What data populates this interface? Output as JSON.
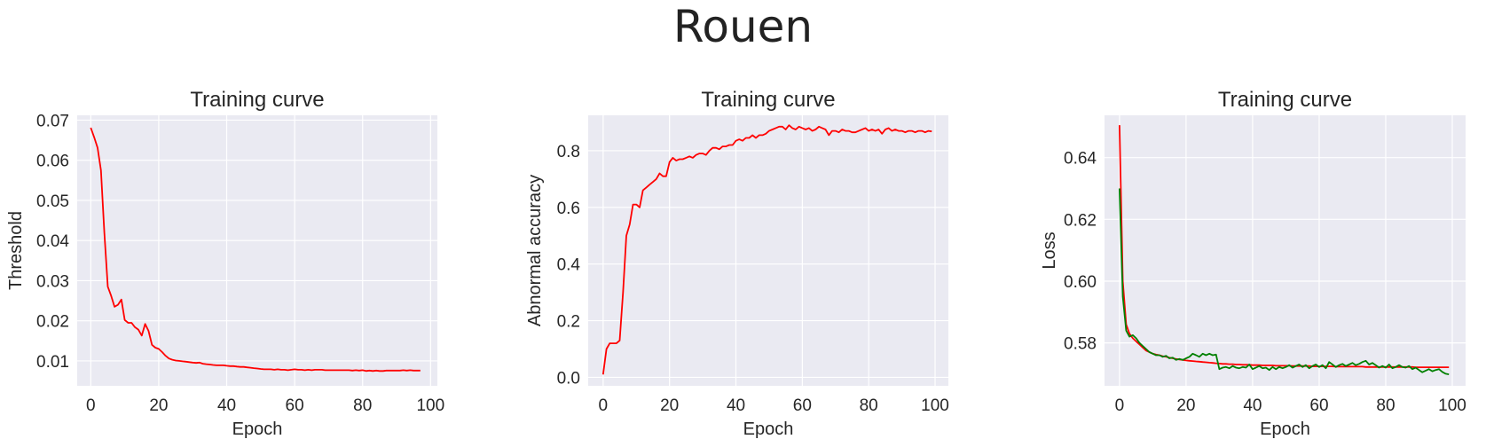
{
  "figure": {
    "suptitle": "Rouen"
  },
  "chart_data": [
    {
      "type": "line",
      "title": "Training curve",
      "xlabel": "Epoch",
      "ylabel": "Threshold",
      "xlim": [
        -4,
        102
      ],
      "ylim": [
        0.0038,
        0.0712
      ],
      "xticks": [
        0,
        20,
        40,
        60,
        80,
        100
      ],
      "yticks": [
        0.01,
        0.02,
        0.03,
        0.04,
        0.05,
        0.06,
        0.07
      ],
      "ytick_labels": [
        "0.01",
        "0.02",
        "0.03",
        "0.04",
        "0.05",
        "0.06",
        "0.07"
      ],
      "grid": true,
      "series": [
        {
          "color": "#ff0000",
          "x": [
            0,
            1,
            2,
            3,
            4,
            5,
            6,
            7,
            8,
            9,
            10,
            11,
            12,
            13,
            14,
            15,
            16,
            17,
            18,
            19,
            20,
            21,
            22,
            23,
            24,
            25,
            26,
            27,
            28,
            29,
            30,
            31,
            32,
            33,
            34,
            35,
            36,
            37,
            38,
            39,
            40,
            41,
            42,
            43,
            44,
            45,
            46,
            47,
            48,
            49,
            50,
            51,
            52,
            53,
            54,
            55,
            56,
            57,
            58,
            59,
            60,
            61,
            62,
            63,
            64,
            65,
            66,
            67,
            68,
            69,
            70,
            71,
            72,
            73,
            74,
            75,
            76,
            77,
            78,
            79,
            80,
            81,
            82,
            83,
            84,
            85,
            86,
            87,
            88,
            89,
            90,
            91,
            92,
            93,
            94,
            95,
            96,
            97
          ],
          "y": [
            0.0681,
            0.0657,
            0.0631,
            0.0575,
            0.042,
            0.0285,
            0.0262,
            0.0235,
            0.024,
            0.0253,
            0.0202,
            0.0195,
            0.0195,
            0.0184,
            0.0178,
            0.0163,
            0.0192,
            0.0175,
            0.014,
            0.0133,
            0.013,
            0.0122,
            0.0113,
            0.0106,
            0.0103,
            0.0101,
            0.01,
            0.0099,
            0.0098,
            0.0097,
            0.0096,
            0.0095,
            0.0096,
            0.0093,
            0.0092,
            0.0091,
            0.009,
            0.0089,
            0.0089,
            0.0089,
            0.0088,
            0.0087,
            0.0087,
            0.0086,
            0.0085,
            0.0085,
            0.0084,
            0.0083,
            0.0082,
            0.0081,
            0.008,
            0.0079,
            0.0079,
            0.0079,
            0.0078,
            0.0079,
            0.0078,
            0.0078,
            0.0077,
            0.0078,
            0.0079,
            0.0078,
            0.0078,
            0.0077,
            0.0078,
            0.0077,
            0.0078,
            0.0078,
            0.0078,
            0.0077,
            0.0077,
            0.0077,
            0.0077,
            0.0077,
            0.0077,
            0.0077,
            0.0077,
            0.0076,
            0.0077,
            0.0076,
            0.0077,
            0.0075,
            0.0076,
            0.0075,
            0.0076,
            0.0075,
            0.0075,
            0.0076,
            0.0076,
            0.0076,
            0.0076,
            0.0076,
            0.0077,
            0.0076,
            0.0077,
            0.0076,
            0.0076,
            0.0076
          ]
        }
      ]
    },
    {
      "type": "line",
      "title": "Training curve",
      "xlabel": "Epoch",
      "ylabel": "Abnormal accuracy",
      "xlim": [
        -4.5,
        104
      ],
      "ylim": [
        -0.03,
        0.925
      ],
      "xticks": [
        0,
        20,
        40,
        60,
        80,
        100
      ],
      "yticks": [
        0.0,
        0.2,
        0.4,
        0.6,
        0.8
      ],
      "ytick_labels": [
        "0.0",
        "0.2",
        "0.4",
        "0.6",
        "0.8"
      ],
      "grid": true,
      "series": [
        {
          "color": "#ff0000",
          "x": [
            0,
            1,
            2,
            3,
            4,
            5,
            6,
            7,
            8,
            9,
            10,
            11,
            12,
            13,
            14,
            15,
            16,
            17,
            18,
            19,
            20,
            21,
            22,
            23,
            24,
            25,
            26,
            27,
            28,
            29,
            30,
            31,
            32,
            33,
            34,
            35,
            36,
            37,
            38,
            39,
            40,
            41,
            42,
            43,
            44,
            45,
            46,
            47,
            48,
            49,
            50,
            51,
            52,
            53,
            54,
            55,
            56,
            57,
            58,
            59,
            60,
            61,
            62,
            63,
            64,
            65,
            66,
            67,
            68,
            69,
            70,
            71,
            72,
            73,
            74,
            75,
            76,
            77,
            78,
            79,
            80,
            81,
            82,
            83,
            84,
            85,
            86,
            87,
            88,
            89,
            90,
            91,
            92,
            93,
            94,
            95,
            96,
            97,
            98,
            99
          ],
          "y": [
            0.01,
            0.1,
            0.12,
            0.12,
            0.12,
            0.13,
            0.3,
            0.5,
            0.54,
            0.61,
            0.61,
            0.6,
            0.66,
            0.67,
            0.68,
            0.69,
            0.7,
            0.72,
            0.71,
            0.71,
            0.76,
            0.775,
            0.765,
            0.77,
            0.77,
            0.775,
            0.78,
            0.775,
            0.785,
            0.79,
            0.79,
            0.785,
            0.8,
            0.81,
            0.81,
            0.805,
            0.815,
            0.815,
            0.82,
            0.82,
            0.835,
            0.84,
            0.835,
            0.845,
            0.845,
            0.855,
            0.845,
            0.855,
            0.855,
            0.86,
            0.87,
            0.875,
            0.88,
            0.885,
            0.885,
            0.875,
            0.89,
            0.88,
            0.875,
            0.885,
            0.88,
            0.875,
            0.88,
            0.87,
            0.875,
            0.885,
            0.88,
            0.875,
            0.855,
            0.87,
            0.87,
            0.865,
            0.875,
            0.87,
            0.87,
            0.865,
            0.865,
            0.87,
            0.875,
            0.88,
            0.87,
            0.875,
            0.87,
            0.875,
            0.86,
            0.875,
            0.88,
            0.87,
            0.875,
            0.87,
            0.87,
            0.865,
            0.87,
            0.87,
            0.865,
            0.87,
            0.87,
            0.865,
            0.87,
            0.868
          ]
        }
      ]
    },
    {
      "type": "line",
      "title": "Training curve",
      "xlabel": "Epoch",
      "ylabel": "Loss",
      "xlim": [
        -4.5,
        104
      ],
      "ylim": [
        0.5661,
        0.6537
      ],
      "xticks": [
        0,
        20,
        40,
        60,
        80,
        100
      ],
      "yticks": [
        0.58,
        0.6,
        0.62,
        0.64
      ],
      "ytick_labels": [
        "0.58",
        "0.60",
        "0.62",
        "0.64"
      ],
      "grid": true,
      "series": [
        {
          "color": "#ff0000",
          "x": [
            0,
            1,
            2,
            3,
            4,
            5,
            6,
            7,
            8,
            9,
            10,
            11,
            12,
            13,
            14,
            15,
            16,
            17,
            18,
            19,
            20,
            21,
            22,
            23,
            24,
            25,
            26,
            27,
            28,
            29,
            30,
            31,
            32,
            33,
            34,
            35,
            36,
            37,
            38,
            39,
            40,
            41,
            42,
            43,
            44,
            45,
            46,
            47,
            48,
            49,
            50,
            51,
            52,
            53,
            54,
            55,
            56,
            57,
            58,
            59,
            60,
            61,
            62,
            63,
            64,
            65,
            66,
            67,
            68,
            69,
            70,
            71,
            72,
            73,
            74,
            75,
            76,
            77,
            78,
            79,
            80,
            81,
            82,
            83,
            84,
            85,
            86,
            87,
            88,
            89,
            90,
            91,
            92,
            93,
            94,
            95,
            96,
            97,
            98,
            99
          ],
          "y": [
            0.6505,
            0.6,
            0.586,
            0.583,
            0.5815,
            0.5805,
            0.5795,
            0.5785,
            0.5775,
            0.577,
            0.5765,
            0.5762,
            0.576,
            0.5757,
            0.5755,
            0.5752,
            0.575,
            0.5748,
            0.5746,
            0.5745,
            0.5743,
            0.5742,
            0.5741,
            0.574,
            0.5739,
            0.5738,
            0.5737,
            0.5736,
            0.5735,
            0.5734,
            0.5733,
            0.5732,
            0.5732,
            0.5731,
            0.5731,
            0.573,
            0.573,
            0.5729,
            0.5729,
            0.5729,
            0.5728,
            0.5728,
            0.5728,
            0.5727,
            0.5727,
            0.5727,
            0.5727,
            0.5726,
            0.5726,
            0.5726,
            0.5726,
            0.5726,
            0.5725,
            0.5725,
            0.5725,
            0.5725,
            0.5725,
            0.5725,
            0.5724,
            0.5724,
            0.5724,
            0.5724,
            0.5724,
            0.5724,
            0.5724,
            0.5723,
            0.5723,
            0.5723,
            0.5723,
            0.5723,
            0.5723,
            0.5723,
            0.5723,
            0.5723,
            0.5722,
            0.5722,
            0.5722,
            0.5722,
            0.5722,
            0.5722,
            0.5722,
            0.5722,
            0.5722,
            0.5722,
            0.5722,
            0.5722,
            0.5722,
            0.5722,
            0.5722,
            0.5721,
            0.5721,
            0.5721,
            0.5721,
            0.5721,
            0.5721,
            0.5721,
            0.5721,
            0.5721,
            0.5721,
            0.5721
          ]
        },
        {
          "color": "#008000",
          "x": [
            0,
            1,
            2,
            3,
            4,
            5,
            6,
            7,
            8,
            9,
            10,
            11,
            12,
            13,
            14,
            15,
            16,
            17,
            18,
            19,
            20,
            21,
            22,
            23,
            24,
            25,
            26,
            27,
            28,
            29,
            30,
            31,
            32,
            33,
            34,
            35,
            36,
            37,
            38,
            39,
            40,
            41,
            42,
            43,
            44,
            45,
            46,
            47,
            48,
            49,
            50,
            51,
            52,
            53,
            54,
            55,
            56,
            57,
            58,
            59,
            60,
            61,
            62,
            63,
            64,
            65,
            66,
            67,
            68,
            69,
            70,
            71,
            72,
            73,
            74,
            75,
            76,
            77,
            78,
            79,
            80,
            81,
            82,
            83,
            84,
            85,
            86,
            87,
            88,
            89,
            90,
            91,
            92,
            93,
            94,
            95,
            96,
            97,
            98,
            99
          ],
          "y": [
            0.63,
            0.595,
            0.584,
            0.582,
            0.5825,
            0.5815,
            0.58,
            0.579,
            0.578,
            0.577,
            0.5765,
            0.576,
            0.576,
            0.5755,
            0.5758,
            0.575,
            0.5752,
            0.5745,
            0.5748,
            0.5745,
            0.575,
            0.5755,
            0.5765,
            0.576,
            0.5755,
            0.5765,
            0.576,
            0.5765,
            0.576,
            0.5762,
            0.5715,
            0.572,
            0.5722,
            0.5718,
            0.5725,
            0.572,
            0.5718,
            0.5722,
            0.572,
            0.573,
            0.5715,
            0.572,
            0.5725,
            0.5718,
            0.572,
            0.5712,
            0.5722,
            0.5715,
            0.5722,
            0.5718,
            0.5722,
            0.5728,
            0.572,
            0.5725,
            0.573,
            0.5722,
            0.5728,
            0.5718,
            0.5725,
            0.573,
            0.5722,
            0.5728,
            0.5718,
            0.5738,
            0.573,
            0.5722,
            0.5728,
            0.5732,
            0.5725,
            0.573,
            0.5735,
            0.5728,
            0.5732,
            0.5738,
            0.5742,
            0.573,
            0.5735,
            0.5728,
            0.572,
            0.5725,
            0.572,
            0.573,
            0.5718,
            0.5722,
            0.5728,
            0.5722,
            0.572,
            0.5725,
            0.5715,
            0.572,
            0.5712,
            0.5705,
            0.571,
            0.5715,
            0.5708,
            0.5712,
            0.5715,
            0.5706,
            0.57,
            0.5698
          ]
        }
      ]
    }
  ]
}
